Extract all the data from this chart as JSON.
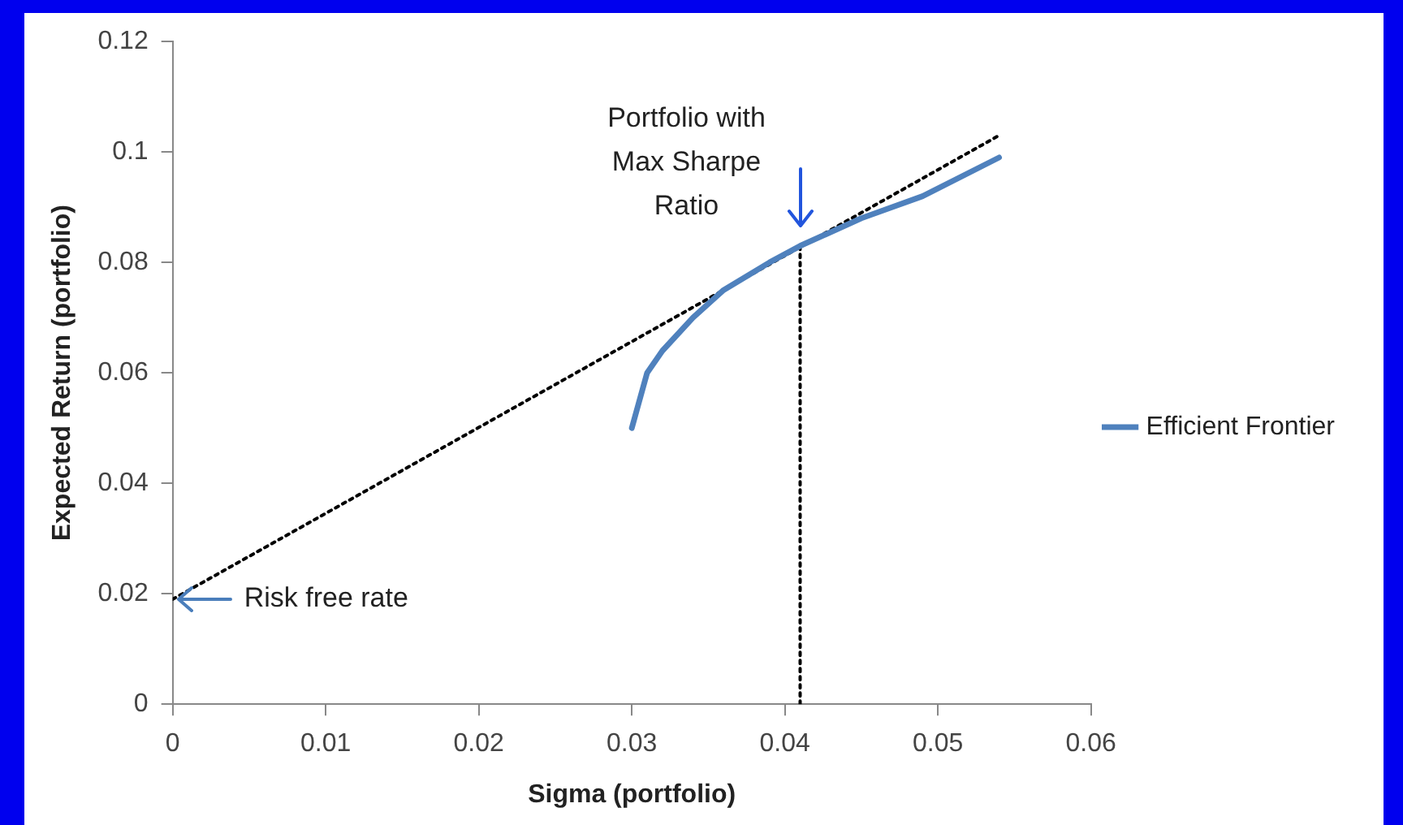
{
  "chart_data": {
    "type": "line",
    "xlabel": "Sigma (portfolio)",
    "ylabel": "Expected Return (portfolio)",
    "xlim": [
      0,
      0.06
    ],
    "xticks": [
      0,
      0.01,
      0.02,
      0.03,
      0.04,
      0.05,
      0.06
    ],
    "ylim": [
      0,
      0.12
    ],
    "yticks": [
      0,
      0.02,
      0.04,
      0.06,
      0.08,
      0.1,
      0.12
    ],
    "grid": false,
    "legend": "right",
    "marker": "none",
    "series": [
      {
        "name": "Efficient Frontier",
        "color": "#4f81bd",
        "line_style": "solid",
        "x": [
          0.03,
          0.031,
          0.032,
          0.034,
          0.036,
          0.039,
          0.041,
          0.045,
          0.049,
          0.054
        ],
        "values": [
          0.05,
          0.06,
          0.064,
          0.07,
          0.075,
          0.08,
          0.083,
          0.088,
          0.092,
          0.099
        ]
      },
      {
        "color": "#000000",
        "line_style": "dotted",
        "x": [
          0,
          0.054
        ],
        "values": [
          0.019,
          0.103
        ]
      },
      {
        "color": "#000000",
        "line_style": "dotted",
        "x": [
          0.041,
          0.041
        ],
        "values": [
          0,
          0.083
        ]
      }
    ],
    "annotations": [
      {
        "text": "Portfolio with Max Sharpe Ratio",
        "x": 0.041,
        "y": 0.083
      },
      {
        "text": "Risk free rate",
        "x": 0,
        "y": 0.019
      }
    ]
  }
}
